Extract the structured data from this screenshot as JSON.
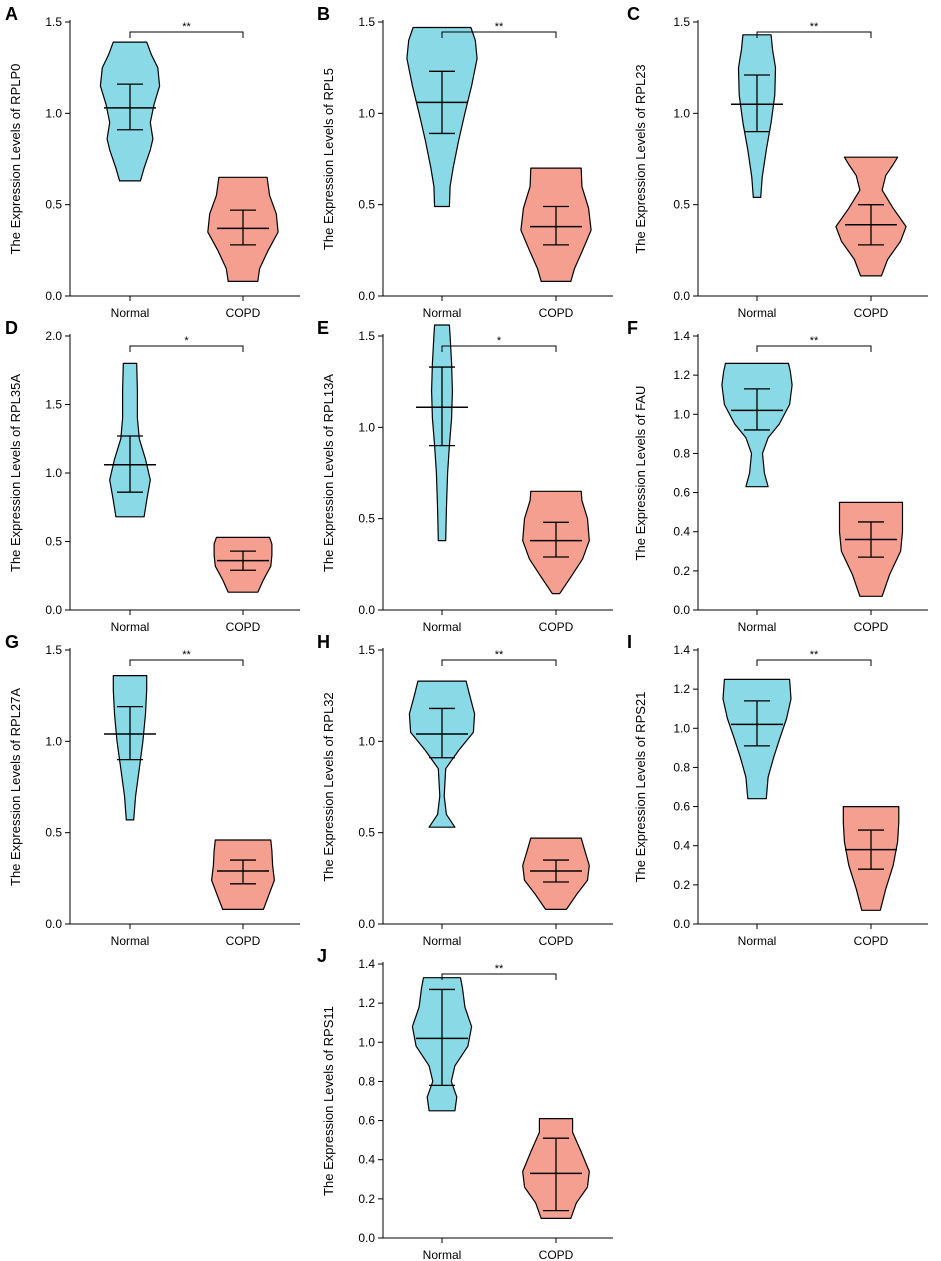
{
  "figure": {
    "x_categories": [
      "Normal",
      "COPD"
    ]
  },
  "colors": {
    "normal_fill": "#8ad9e6",
    "copd_fill": "#f59f90",
    "stroke": "#000000"
  },
  "chart_data": [
    {
      "panel": "A",
      "type": "violin",
      "ylabel": "The Expression Levels of RPLP0",
      "ylim": [
        0,
        1.5
      ],
      "yticks": [
        "0.0",
        "0.5",
        "1.0",
        "1.5"
      ],
      "significance": "**",
      "series": [
        {
          "name": "Normal",
          "min": 0.63,
          "max": 1.39,
          "mean": 1.03,
          "sd_low": 0.91,
          "sd_high": 1.16,
          "shape": [
            [
              0.63,
              0.28
            ],
            [
              0.7,
              0.38
            ],
            [
              0.8,
              0.55
            ],
            [
              0.86,
              0.62
            ],
            [
              0.95,
              0.55
            ],
            [
              1.05,
              0.65
            ],
            [
              1.15,
              0.8
            ],
            [
              1.25,
              0.75
            ],
            [
              1.32,
              0.58
            ],
            [
              1.39,
              0.45
            ]
          ]
        },
        {
          "name": "COPD",
          "min": 0.08,
          "max": 0.65,
          "mean": 0.37,
          "sd_low": 0.28,
          "sd_high": 0.47,
          "shape": [
            [
              0.08,
              0.4
            ],
            [
              0.15,
              0.45
            ],
            [
              0.25,
              0.68
            ],
            [
              0.35,
              0.95
            ],
            [
              0.45,
              0.9
            ],
            [
              0.55,
              0.72
            ],
            [
              0.65,
              0.65
            ]
          ]
        }
      ]
    },
    {
      "panel": "B",
      "type": "violin",
      "ylabel": "The Expression Levels of RPL5",
      "ylim": [
        0,
        1.5
      ],
      "yticks": [
        "0.0",
        "0.5",
        "1.0",
        "1.5"
      ],
      "significance": "**",
      "series": [
        {
          "name": "Normal",
          "min": 0.49,
          "max": 1.47,
          "mean": 1.06,
          "sd_low": 0.89,
          "sd_high": 1.23,
          "shape": [
            [
              0.49,
              0.2
            ],
            [
              0.6,
              0.22
            ],
            [
              0.7,
              0.3
            ],
            [
              0.85,
              0.45
            ],
            [
              1.0,
              0.62
            ],
            [
              1.15,
              0.8
            ],
            [
              1.3,
              0.95
            ],
            [
              1.4,
              0.9
            ],
            [
              1.47,
              0.78
            ]
          ]
        },
        {
          "name": "COPD",
          "min": 0.08,
          "max": 0.7,
          "mean": 0.38,
          "sd_low": 0.28,
          "sd_high": 0.49,
          "shape": [
            [
              0.08,
              0.4
            ],
            [
              0.15,
              0.5
            ],
            [
              0.25,
              0.72
            ],
            [
              0.36,
              0.95
            ],
            [
              0.48,
              0.88
            ],
            [
              0.6,
              0.7
            ],
            [
              0.7,
              0.68
            ]
          ]
        }
      ]
    },
    {
      "panel": "C",
      "type": "violin",
      "ylabel": "The Expression Levels of RPL23",
      "ylim": [
        0,
        1.5
      ],
      "yticks": [
        "0.0",
        "0.5",
        "1.0",
        "1.5"
      ],
      "significance": "**",
      "series": [
        {
          "name": "Normal",
          "min": 0.54,
          "max": 1.43,
          "mean": 1.05,
          "sd_low": 0.9,
          "sd_high": 1.21,
          "shape": [
            [
              0.54,
              0.1
            ],
            [
              0.65,
              0.14
            ],
            [
              0.8,
              0.25
            ],
            [
              0.95,
              0.38
            ],
            [
              1.1,
              0.48
            ],
            [
              1.25,
              0.5
            ],
            [
              1.35,
              0.42
            ],
            [
              1.43,
              0.38
            ]
          ]
        },
        {
          "name": "COPD",
          "min": 0.11,
          "max": 0.76,
          "mean": 0.39,
          "sd_low": 0.28,
          "sd_high": 0.5,
          "shape": [
            [
              0.11,
              0.28
            ],
            [
              0.2,
              0.45
            ],
            [
              0.3,
              0.8
            ],
            [
              0.38,
              0.95
            ],
            [
              0.48,
              0.6
            ],
            [
              0.58,
              0.3
            ],
            [
              0.66,
              0.4
            ],
            [
              0.72,
              0.6
            ],
            [
              0.76,
              0.72
            ]
          ]
        }
      ]
    },
    {
      "panel": "D",
      "type": "violin",
      "ylabel": "The Expression Levels of RPL35A",
      "ylim": [
        0,
        2.0
      ],
      "yticks": [
        "0.0",
        "0.5",
        "1.0",
        "1.5",
        "2.0"
      ],
      "significance": "*",
      "series": [
        {
          "name": "Normal",
          "min": 0.68,
          "max": 1.8,
          "mean": 1.06,
          "sd_low": 0.86,
          "sd_high": 1.27,
          "shape": [
            [
              0.68,
              0.38
            ],
            [
              0.8,
              0.45
            ],
            [
              0.95,
              0.55
            ],
            [
              1.1,
              0.42
            ],
            [
              1.25,
              0.25
            ],
            [
              1.4,
              0.2
            ],
            [
              1.6,
              0.2
            ],
            [
              1.8,
              0.18
            ]
          ]
        },
        {
          "name": "COPD",
          "min": 0.13,
          "max": 0.53,
          "mean": 0.36,
          "sd_low": 0.29,
          "sd_high": 0.43,
          "shape": [
            [
              0.13,
              0.4
            ],
            [
              0.22,
              0.55
            ],
            [
              0.32,
              0.75
            ],
            [
              0.4,
              0.78
            ],
            [
              0.48,
              0.78
            ],
            [
              0.53,
              0.72
            ]
          ]
        }
      ]
    },
    {
      "panel": "E",
      "type": "violin",
      "ylabel": "The Expression Levels of RPL13A",
      "ylim": [
        0,
        1.5
      ],
      "yticks": [
        "0.0",
        "0.5",
        "1.0",
        "1.5"
      ],
      "significance": "*",
      "series": [
        {
          "name": "Normal",
          "min": 0.38,
          "max": 1.56,
          "mean": 1.11,
          "sd_low": 0.9,
          "sd_high": 1.33,
          "shape": [
            [
              0.38,
              0.1
            ],
            [
              0.55,
              0.12
            ],
            [
              0.75,
              0.15
            ],
            [
              0.9,
              0.2
            ],
            [
              1.05,
              0.26
            ],
            [
              1.2,
              0.28
            ],
            [
              1.35,
              0.26
            ],
            [
              1.5,
              0.22
            ],
            [
              1.56,
              0.2
            ]
          ]
        },
        {
          "name": "COPD",
          "min": 0.09,
          "max": 0.65,
          "mean": 0.38,
          "sd_low": 0.29,
          "sd_high": 0.48,
          "shape": [
            [
              0.09,
              0.1
            ],
            [
              0.18,
              0.4
            ],
            [
              0.28,
              0.72
            ],
            [
              0.38,
              0.9
            ],
            [
              0.5,
              0.85
            ],
            [
              0.6,
              0.7
            ],
            [
              0.65,
              0.68
            ]
          ]
        }
      ]
    },
    {
      "panel": "F",
      "type": "violin",
      "ylabel": "The Expression Levels of FAU",
      "ylim": [
        0,
        1.4
      ],
      "yticks": [
        "0.0",
        "0.2",
        "0.4",
        "0.6",
        "0.8",
        "1.0",
        "1.2",
        "1.4"
      ],
      "significance": "**",
      "series": [
        {
          "name": "Normal",
          "min": 0.63,
          "max": 1.26,
          "mean": 1.02,
          "sd_low": 0.92,
          "sd_high": 1.13,
          "shape": [
            [
              0.63,
              0.3
            ],
            [
              0.7,
              0.2
            ],
            [
              0.8,
              0.15
            ],
            [
              0.88,
              0.3
            ],
            [
              0.95,
              0.6
            ],
            [
              1.05,
              0.88
            ],
            [
              1.15,
              0.95
            ],
            [
              1.22,
              0.9
            ],
            [
              1.26,
              0.85
            ]
          ]
        },
        {
          "name": "COPD",
          "min": 0.07,
          "max": 0.55,
          "mean": 0.36,
          "sd_low": 0.27,
          "sd_high": 0.45,
          "shape": [
            [
              0.07,
              0.3
            ],
            [
              0.18,
              0.5
            ],
            [
              0.3,
              0.8
            ],
            [
              0.4,
              0.85
            ],
            [
              0.5,
              0.85
            ],
            [
              0.55,
              0.85
            ]
          ]
        }
      ]
    },
    {
      "panel": "G",
      "type": "violin",
      "ylabel": "The Expression Levels of RPL27A",
      "ylim": [
        0,
        1.5
      ],
      "yticks": [
        "0.0",
        "0.5",
        "1.0",
        "1.5"
      ],
      "significance": "**",
      "series": [
        {
          "name": "Normal",
          "min": 0.57,
          "max": 1.36,
          "mean": 1.04,
          "sd_low": 0.9,
          "sd_high": 1.19,
          "shape": [
            [
              0.57,
              0.1
            ],
            [
              0.7,
              0.15
            ],
            [
              0.85,
              0.25
            ],
            [
              1.0,
              0.35
            ],
            [
              1.15,
              0.42
            ],
            [
              1.28,
              0.45
            ],
            [
              1.36,
              0.45
            ]
          ]
        },
        {
          "name": "COPD",
          "min": 0.08,
          "max": 0.46,
          "mean": 0.29,
          "sd_low": 0.22,
          "sd_high": 0.35,
          "shape": [
            [
              0.08,
              0.55
            ],
            [
              0.16,
              0.7
            ],
            [
              0.24,
              0.85
            ],
            [
              0.32,
              0.8
            ],
            [
              0.4,
              0.78
            ],
            [
              0.46,
              0.75
            ]
          ]
        }
      ]
    },
    {
      "panel": "H",
      "type": "violin",
      "ylabel": "The Expression Levels of RPL32",
      "ylim": [
        0,
        1.5
      ],
      "yticks": [
        "0.0",
        "0.5",
        "1.0",
        "1.5"
      ],
      "significance": "**",
      "series": [
        {
          "name": "Normal",
          "min": 0.53,
          "max": 1.33,
          "mean": 1.04,
          "sd_low": 0.91,
          "sd_high": 1.18,
          "shape": [
            [
              0.53,
              0.35
            ],
            [
              0.6,
              0.12
            ],
            [
              0.7,
              0.06
            ],
            [
              0.85,
              0.1
            ],
            [
              0.95,
              0.45
            ],
            [
              1.05,
              0.85
            ],
            [
              1.15,
              0.88
            ],
            [
              1.25,
              0.75
            ],
            [
              1.33,
              0.65
            ]
          ]
        },
        {
          "name": "COPD",
          "min": 0.08,
          "max": 0.47,
          "mean": 0.29,
          "sd_low": 0.23,
          "sd_high": 0.35,
          "shape": [
            [
              0.08,
              0.28
            ],
            [
              0.16,
              0.55
            ],
            [
              0.24,
              0.85
            ],
            [
              0.32,
              0.9
            ],
            [
              0.4,
              0.78
            ],
            [
              0.47,
              0.68
            ]
          ]
        }
      ]
    },
    {
      "panel": "I",
      "type": "violin",
      "ylabel": "The Expression Levels of RPS21",
      "ylim": [
        0,
        1.4
      ],
      "yticks": [
        "0.0",
        "0.2",
        "0.4",
        "0.6",
        "0.8",
        "1.0",
        "1.2",
        "1.4"
      ],
      "significance": "**",
      "series": [
        {
          "name": "Normal",
          "min": 0.64,
          "max": 1.25,
          "mean": 1.02,
          "sd_low": 0.91,
          "sd_high": 1.14,
          "shape": [
            [
              0.64,
              0.25
            ],
            [
              0.75,
              0.3
            ],
            [
              0.85,
              0.45
            ],
            [
              0.95,
              0.62
            ],
            [
              1.05,
              0.8
            ],
            [
              1.15,
              0.92
            ],
            [
              1.25,
              0.88
            ]
          ]
        },
        {
          "name": "COPD",
          "min": 0.07,
          "max": 0.6,
          "mean": 0.38,
          "sd_low": 0.28,
          "sd_high": 0.48,
          "shape": [
            [
              0.07,
              0.25
            ],
            [
              0.18,
              0.4
            ],
            [
              0.3,
              0.6
            ],
            [
              0.42,
              0.72
            ],
            [
              0.52,
              0.75
            ],
            [
              0.6,
              0.75
            ]
          ]
        }
      ]
    },
    {
      "panel": "J",
      "type": "violin",
      "ylabel": "The Expression Levels of RPS11",
      "ylim": [
        0,
        1.4
      ],
      "yticks": [
        "0.0",
        "0.2",
        "0.4",
        "0.6",
        "0.8",
        "1.0",
        "1.2",
        "1.4"
      ],
      "significance": "**",
      "series": [
        {
          "name": "Normal",
          "min": 0.65,
          "max": 1.33,
          "mean": 1.02,
          "sd_low": 0.78,
          "sd_high": 1.27,
          "shape": [
            [
              0.65,
              0.35
            ],
            [
              0.72,
              0.4
            ],
            [
              0.8,
              0.25
            ],
            [
              0.88,
              0.35
            ],
            [
              0.98,
              0.7
            ],
            [
              1.08,
              0.8
            ],
            [
              1.18,
              0.62
            ],
            [
              1.28,
              0.55
            ],
            [
              1.33,
              0.5
            ]
          ]
        },
        {
          "name": "COPD",
          "min": 0.1,
          "max": 0.61,
          "mean": 0.33,
          "sd_low": 0.14,
          "sd_high": 0.51,
          "shape": [
            [
              0.1,
              0.4
            ],
            [
              0.18,
              0.55
            ],
            [
              0.26,
              0.85
            ],
            [
              0.34,
              0.9
            ],
            [
              0.44,
              0.68
            ],
            [
              0.54,
              0.45
            ],
            [
              0.61,
              0.45
            ]
          ]
        }
      ]
    }
  ]
}
